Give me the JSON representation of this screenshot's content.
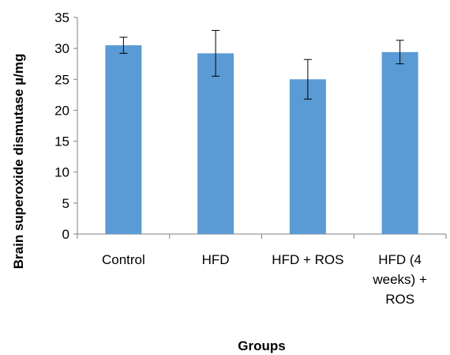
{
  "chart_data": {
    "type": "bar",
    "title": "",
    "xlabel": "Groups",
    "ylabel": "Brain superoxide dismutase µ/mg",
    "ylim": [
      0,
      35
    ],
    "yticks": [
      0,
      5,
      10,
      15,
      20,
      25,
      30,
      35
    ],
    "grid": false,
    "categories": [
      [
        "Control"
      ],
      [
        "HFD"
      ],
      [
        "HFD + ROS"
      ],
      [
        "HFD (4",
        "weeks) +",
        "ROS"
      ]
    ],
    "values": [
      30.5,
      29.2,
      25.0,
      29.4
    ],
    "errors": [
      1.3,
      3.7,
      3.2,
      1.9
    ],
    "bar_color": "#5b9bd5",
    "axis_color": "#808080"
  }
}
